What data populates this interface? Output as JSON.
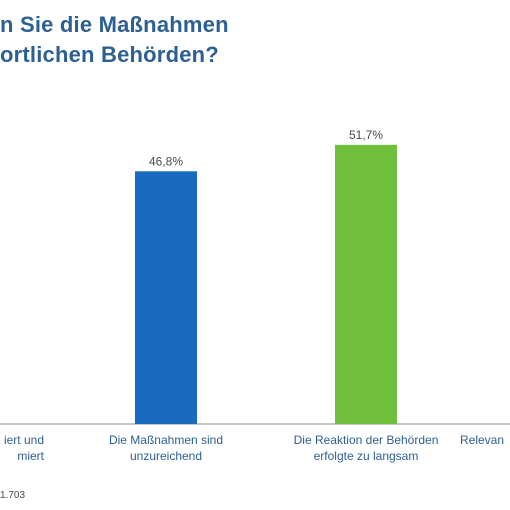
{
  "title": {
    "line1": "n Sie die Maßnahmen",
    "line2": "ortlichen Behörden?"
  },
  "footnote": "1.703",
  "colors": {
    "title": "#2c5f93",
    "axis": "#8c8c8c",
    "value_label": "#4a4a4a",
    "category_label": "#2c5f93"
  },
  "chart_data": {
    "type": "bar",
    "categories": [
      [
        "iert und",
        "miert"
      ],
      [
        "Die Maßnahmen sind",
        "unzureichend"
      ],
      [
        "Die Reaktion der Behörden",
        "erfolgte zu langsam"
      ],
      [
        "Relevan"
      ]
    ],
    "values": [
      null,
      46.8,
      51.7,
      null
    ],
    "data_labels": [
      "",
      "46,8%",
      "51,7%",
      ""
    ],
    "bar_colors": [
      "#1a6bbf",
      "#1a6bbf",
      "#6fbe3c",
      "#1a6bbf"
    ],
    "ylim": [
      0,
      60
    ],
    "grid": false
  }
}
